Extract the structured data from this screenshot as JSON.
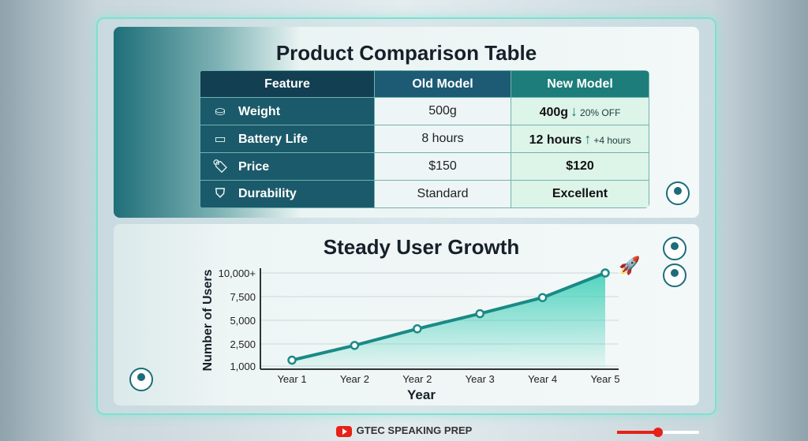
{
  "table": {
    "title": "Product Comparison Table",
    "headers": [
      "Feature",
      "Old Model",
      "New Model"
    ],
    "rows": [
      {
        "icon": "weight-icon",
        "feature": "Weight",
        "old": "500g",
        "new": "400g",
        "delta": "20% OFF",
        "delta_dir": "down"
      },
      {
        "icon": "battery-icon",
        "feature": "Battery Life",
        "old": "8 hours",
        "new": "12 hours",
        "delta": "+4 hours",
        "delta_dir": "up"
      },
      {
        "icon": "price-tag-icon",
        "feature": "Price",
        "old": "$150",
        "new": "$120"
      },
      {
        "icon": "shield-icon",
        "feature": "Durability",
        "old": "Standard",
        "new": "Excellent"
      }
    ]
  },
  "chart_data": {
    "type": "line",
    "title": "Steady User Growth",
    "xlabel": "Year",
    "ylabel": "Number of Users",
    "categories": [
      "Year 1",
      "Year 2",
      "Year 2",
      "Year 3",
      "Year 4",
      "Year 5"
    ],
    "values": [
      1400,
      2400,
      4100,
      5700,
      7400,
      10000
    ],
    "yticks": [
      1000,
      2500,
      5000,
      7500,
      10000
    ],
    "ytick_labels": [
      "1,000",
      "2,500",
      "5,000",
      "7,500",
      "10,000+"
    ],
    "ylim": [
      1000,
      10000
    ],
    "grid": true,
    "fill": "area under line",
    "color": "#1a8a86"
  },
  "footer": {
    "channel": "GTEC SPEAKING PREP",
    "progress": 0.5
  },
  "colors": {
    "accent": "#1c7d7a",
    "frame": "#7fe0cf",
    "youtube": "#e62117"
  }
}
